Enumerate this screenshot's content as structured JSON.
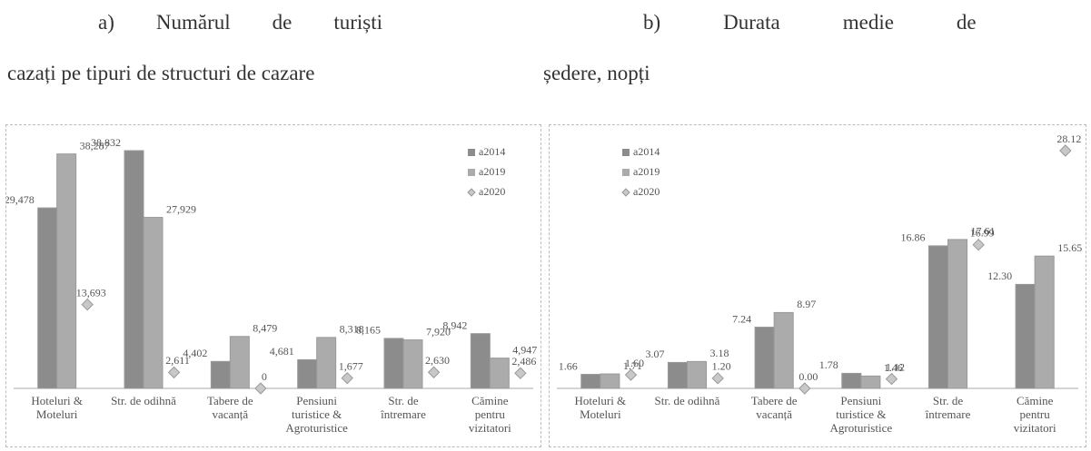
{
  "captions": [
    {
      "line1": "a)  Numărul  de  turiști",
      "line2": "cazați pe tipuri de structuri de cazare"
    },
    {
      "line1": "b)   Durata   medie   de",
      "line2": "ședere, nopți"
    }
  ],
  "chart_data": [
    {
      "type": "bar",
      "legend": "upper right",
      "categories": [
        "Hoteluri & Moteluri",
        "Str. de odihnă",
        "Tabere de vacanță",
        "Pensiuni turistice & Agroturistice",
        "Str. de întremare",
        "Cămine pentru vizitatori"
      ],
      "series": [
        {
          "name": "a2014",
          "color": "#8c8c8c",
          "values": [
            29478,
            38832,
            4402,
            4681,
            8165,
            8942
          ],
          "value_labels": [
            "29,478",
            "38,832",
            "4,402",
            "4,681",
            "8,165",
            "8,942"
          ]
        },
        {
          "name": "a2019",
          "color": "#ababab",
          "values": [
            38287,
            27929,
            8479,
            8318,
            7920,
            4947
          ],
          "value_labels": [
            "38,287",
            "27,929",
            "8,479",
            "8,318",
            "7,920",
            "4,947"
          ]
        },
        {
          "name": "a2020",
          "color": "#c8c8c8",
          "marker": "diamond",
          "values": [
            13693,
            2611,
            0,
            1677,
            2630,
            2486
          ],
          "value_labels": [
            "13,693",
            "2,611",
            "0",
            "1,677",
            "2,630",
            "2,486"
          ]
        }
      ]
    },
    {
      "type": "bar",
      "legend": "upper left",
      "categories": [
        "Hoteluri & Moteluri",
        "Str. de odihnă",
        "Tabere de vacanță",
        "Pensiuni turistice & Agroturistice",
        "Str. de întremare",
        "Cămine pentru vizitatori"
      ],
      "series": [
        {
          "name": "a2014",
          "color": "#8c8c8c",
          "values": [
            1.66,
            3.07,
            7.24,
            1.78,
            16.86,
            12.3
          ],
          "value_labels": [
            "1.66",
            "3.07",
            "7.24",
            "1.78",
            "16.86",
            "12.30"
          ]
        },
        {
          "name": "a2019",
          "color": "#ababab",
          "values": [
            1.71,
            3.18,
            8.97,
            1.46,
            17.61,
            15.65
          ],
          "value_labels": [
            "1.71",
            "3.18",
            "8.97",
            "1.46",
            "17.61",
            "15.65"
          ]
        },
        {
          "name": "a2020",
          "color": "#c8c8c8",
          "marker": "diamond",
          "values": [
            1.6,
            1.2,
            0,
            1.12,
            16.99,
            28.12
          ],
          "value_labels": [
            "1.60",
            "1.20",
            "0.00",
            "1.12",
            "16.99",
            "28.12"
          ]
        }
      ]
    }
  ]
}
